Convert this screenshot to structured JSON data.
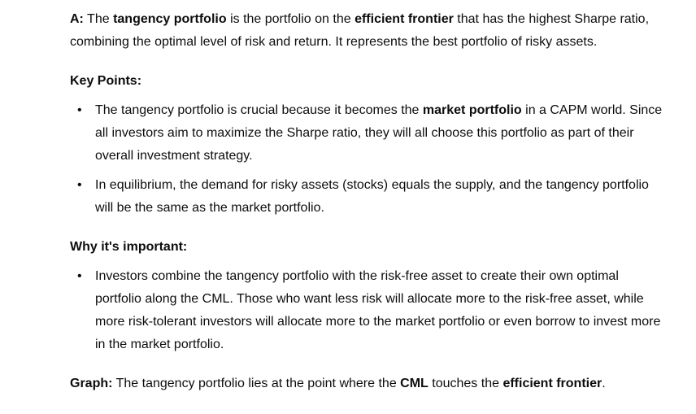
{
  "answer": {
    "prefix": "A:",
    "t1": " The ",
    "b1": "tangency portfolio",
    "t2": " is the portfolio on the ",
    "b2": "efficient frontier",
    "t3": " that has the highest Sharpe ratio, combining the optimal level of risk and return. It represents the best portfolio of risky assets."
  },
  "key_points": {
    "heading": "Key Points:",
    "items": [
      {
        "t1": "The tangency portfolio is crucial because it becomes the ",
        "b1": "market portfolio",
        "t2": " in a CAPM world. Since all investors aim to maximize the Sharpe ratio, they will all choose this portfolio as part of their overall investment strategy."
      },
      {
        "t1": "In equilibrium, the demand for risky assets (stocks) equals the supply, and the tangency portfolio will be the same as the market portfolio."
      }
    ]
  },
  "why_important": {
    "heading": "Why it's important:",
    "items": [
      {
        "t1": "Investors combine the tangency portfolio with the risk-free asset to create their own optimal portfolio along the CML. Those who want less risk will allocate more to the risk-free asset, while more risk-tolerant investors will allocate more to the market portfolio or even borrow to invest more in the market portfolio."
      }
    ]
  },
  "graph": {
    "label": "Graph:",
    "t1": " The tangency portfolio lies at the point where the ",
    "b1": "CML",
    "t2": " touches the ",
    "b2": "efficient frontier",
    "t3": "."
  },
  "bullet_glyph": "•"
}
